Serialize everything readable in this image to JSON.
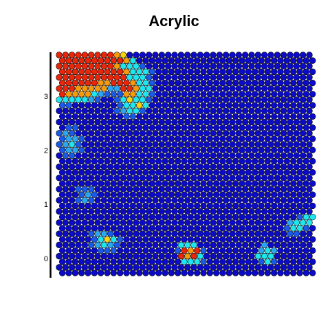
{
  "chart_data": {
    "type": "hexmap",
    "title": "Acrylic",
    "ylim": [
      -0.32,
      3.83
    ],
    "yticks": [
      0,
      1,
      2,
      3
    ],
    "palette": [
      "#0c0cc8",
      "#1a5ae6",
      "#2aa6f2",
      "#1ee6f0",
      "#f5d20a",
      "#f59a0a",
      "#e8260a"
    ],
    "values": [
      [
        6,
        6,
        6,
        6,
        6,
        6,
        6,
        6,
        6,
        5,
        4,
        0,
        0,
        0,
        0,
        0,
        0,
        0,
        0,
        0,
        0,
        0,
        0,
        0,
        0,
        0,
        0,
        0,
        0,
        0,
        0,
        0,
        0,
        0,
        0,
        0,
        0,
        0,
        0,
        0
      ],
      [
        6,
        6,
        6,
        6,
        6,
        6,
        6,
        6,
        6,
        6,
        5,
        3,
        0,
        0,
        0,
        0,
        0,
        0,
        0,
        0,
        0,
        0,
        0,
        0,
        0,
        0,
        0,
        0,
        0,
        0,
        0,
        0,
        0,
        0,
        0,
        0,
        0,
        0,
        0,
        0
      ],
      [
        6,
        6,
        6,
        6,
        6,
        6,
        6,
        6,
        6,
        5,
        3,
        3,
        3,
        1,
        0,
        0,
        0,
        0,
        0,
        0,
        0,
        0,
        0,
        0,
        0,
        0,
        0,
        0,
        0,
        0,
        0,
        0,
        0,
        0,
        0,
        0,
        0,
        0,
        0,
        0
      ],
      [
        6,
        6,
        6,
        6,
        6,
        6,
        6,
        6,
        6,
        6,
        5,
        3,
        3,
        3,
        1,
        0,
        0,
        0,
        0,
        0,
        0,
        0,
        0,
        0,
        0,
        0,
        0,
        0,
        0,
        0,
        0,
        0,
        0,
        0,
        0,
        0,
        0,
        0,
        0,
        0
      ],
      [
        6,
        6,
        6,
        6,
        6,
        6,
        6,
        6,
        6,
        6,
        6,
        3,
        3,
        3,
        1,
        0,
        0,
        0,
        0,
        0,
        0,
        0,
        0,
        0,
        0,
        0,
        0,
        0,
        0,
        0,
        0,
        0,
        0,
        0,
        0,
        0,
        0,
        0,
        0,
        0
      ],
      [
        6,
        6,
        6,
        6,
        6,
        6,
        5,
        5,
        6,
        6,
        6,
        5,
        3,
        3,
        1,
        0,
        0,
        0,
        0,
        0,
        0,
        0,
        0,
        0,
        0,
        0,
        0,
        0,
        0,
        0,
        0,
        0,
        0,
        0,
        0,
        0,
        0,
        0,
        0,
        0
      ],
      [
        6,
        6,
        6,
        5,
        5,
        5,
        5,
        5,
        2,
        2,
        6,
        6,
        5,
        3,
        3,
        0,
        0,
        0,
        0,
        0,
        0,
        0,
        0,
        0,
        0,
        0,
        0,
        0,
        0,
        0,
        0,
        0,
        0,
        0,
        0,
        0,
        0,
        0,
        0,
        0
      ],
      [
        6,
        5,
        5,
        5,
        5,
        3,
        2,
        1,
        1,
        1,
        5,
        5,
        3,
        3,
        1,
        0,
        0,
        0,
        0,
        0,
        0,
        0,
        0,
        0,
        0,
        0,
        0,
        0,
        0,
        0,
        0,
        0,
        0,
        0,
        0,
        0,
        0,
        0,
        0,
        0
      ],
      [
        3,
        3,
        3,
        3,
        3,
        2,
        1,
        0,
        0,
        1,
        3,
        4,
        3,
        3,
        1,
        0,
        0,
        0,
        0,
        0,
        0,
        0,
        0,
        0,
        0,
        0,
        0,
        0,
        0,
        0,
        0,
        0,
        0,
        0,
        0,
        0,
        0,
        0,
        0,
        0
      ],
      [
        1,
        1,
        0,
        0,
        0,
        0,
        0,
        0,
        0,
        1,
        3,
        3,
        4,
        3,
        0,
        0,
        0,
        0,
        0,
        0,
        0,
        0,
        0,
        0,
        0,
        0,
        0,
        0,
        0,
        0,
        0,
        0,
        0,
        0,
        0,
        0,
        0,
        0,
        0,
        0
      ],
      [
        0,
        0,
        0,
        0,
        0,
        0,
        0,
        0,
        0,
        1,
        2,
        3,
        3,
        1,
        0,
        0,
        0,
        0,
        0,
        0,
        0,
        0,
        0,
        0,
        0,
        0,
        0,
        0,
        0,
        0,
        0,
        0,
        0,
        0,
        0,
        0,
        0,
        0,
        0,
        0
      ],
      [
        0,
        0,
        0,
        0,
        0,
        0,
        0,
        0,
        0,
        0,
        1,
        1,
        0,
        0,
        0,
        0,
        0,
        0,
        0,
        0,
        0,
        0,
        0,
        0,
        0,
        0,
        0,
        0,
        0,
        0,
        0,
        0,
        0,
        0,
        0,
        0,
        0,
        0,
        0,
        0
      ],
      [
        0,
        0,
        0,
        0,
        0,
        0,
        0,
        0,
        0,
        0,
        0,
        0,
        0,
        0,
        0,
        0,
        0,
        0,
        0,
        0,
        0,
        0,
        0,
        0,
        0,
        0,
        0,
        0,
        0,
        0,
        0,
        0,
        0,
        0,
        0,
        0,
        0,
        0,
        0,
        0
      ],
      [
        0,
        1,
        1,
        0,
        0,
        0,
        0,
        0,
        0,
        0,
        0,
        0,
        0,
        0,
        0,
        0,
        0,
        0,
        0,
        0,
        0,
        0,
        0,
        0,
        0,
        0,
        0,
        0,
        0,
        0,
        0,
        0,
        0,
        0,
        0,
        0,
        0,
        0,
        0,
        0
      ],
      [
        1,
        2,
        1,
        0,
        0,
        0,
        0,
        0,
        0,
        0,
        0,
        0,
        0,
        0,
        0,
        0,
        0,
        0,
        0,
        0,
        0,
        0,
        0,
        0,
        0,
        0,
        0,
        0,
        0,
        0,
        0,
        0,
        0,
        0,
        0,
        0,
        0,
        0,
        0,
        0
      ],
      [
        1,
        2,
        2,
        1,
        0,
        0,
        0,
        0,
        0,
        0,
        0,
        0,
        0,
        0,
        0,
        0,
        0,
        0,
        0,
        0,
        0,
        0,
        0,
        0,
        0,
        0,
        0,
        0,
        0,
        0,
        0,
        0,
        0,
        0,
        0,
        0,
        0,
        0,
        0,
        0
      ],
      [
        1,
        2,
        3,
        1,
        0,
        0,
        0,
        0,
        0,
        0,
        0,
        0,
        0,
        0,
        0,
        0,
        0,
        0,
        0,
        0,
        0,
        0,
        0,
        0,
        0,
        0,
        0,
        0,
        0,
        0,
        0,
        0,
        0,
        0,
        0,
        0,
        0,
        0,
        0,
        0
      ],
      [
        1,
        2,
        2,
        1,
        0,
        0,
        0,
        0,
        0,
        0,
        0,
        0,
        0,
        0,
        0,
        0,
        0,
        0,
        0,
        0,
        0,
        0,
        0,
        0,
        0,
        0,
        0,
        0,
        0,
        0,
        0,
        0,
        0,
        0,
        0,
        0,
        0,
        0,
        0,
        0
      ],
      [
        0,
        1,
        1,
        0,
        0,
        0,
        0,
        0,
        0,
        0,
        0,
        0,
        0,
        0,
        0,
        0,
        0,
        0,
        0,
        0,
        0,
        0,
        0,
        0,
        0,
        0,
        0,
        0,
        0,
        0,
        0,
        0,
        0,
        0,
        0,
        0,
        0,
        0,
        0,
        0
      ],
      [
        0,
        0,
        0,
        0,
        0,
        0,
        0,
        0,
        0,
        0,
        0,
        0,
        0,
        0,
        0,
        0,
        0,
        0,
        0,
        0,
        0,
        0,
        0,
        0,
        0,
        0,
        0,
        0,
        0,
        0,
        0,
        0,
        0,
        0,
        0,
        0,
        0,
        0,
        0,
        0
      ],
      [
        0,
        0,
        0,
        0,
        0,
        0,
        0,
        0,
        0,
        0,
        0,
        0,
        0,
        0,
        0,
        0,
        0,
        0,
        0,
        0,
        0,
        0,
        0,
        0,
        0,
        0,
        0,
        0,
        0,
        0,
        0,
        0,
        0,
        0,
        0,
        0,
        0,
        0,
        0,
        0
      ],
      [
        0,
        0,
        0,
        0,
        0,
        0,
        0,
        0,
        0,
        0,
        0,
        0,
        0,
        0,
        0,
        0,
        0,
        0,
        0,
        0,
        0,
        0,
        0,
        0,
        0,
        0,
        0,
        0,
        0,
        0,
        0,
        0,
        0,
        0,
        0,
        0,
        0,
        0,
        0,
        0
      ],
      [
        0,
        0,
        0,
        0,
        0,
        0,
        0,
        0,
        0,
        0,
        0,
        0,
        0,
        0,
        0,
        0,
        0,
        0,
        0,
        0,
        0,
        0,
        0,
        0,
        0,
        0,
        0,
        0,
        0,
        0,
        0,
        0,
        0,
        0,
        0,
        0,
        0,
        0,
        0,
        0
      ],
      [
        0,
        0,
        0,
        0,
        0,
        0,
        0,
        0,
        0,
        0,
        0,
        0,
        0,
        0,
        0,
        0,
        0,
        0,
        0,
        0,
        0,
        0,
        0,
        0,
        0,
        0,
        0,
        0,
        0,
        0,
        0,
        0,
        0,
        0,
        0,
        0,
        0,
        0,
        0,
        0
      ],
      [
        0,
        0,
        0,
        1,
        1,
        1,
        0,
        0,
        0,
        0,
        0,
        0,
        0,
        0,
        0,
        0,
        0,
        0,
        0,
        0,
        0,
        0,
        0,
        0,
        0,
        0,
        0,
        0,
        0,
        0,
        0,
        0,
        0,
        0,
        0,
        0,
        0,
        0,
        0,
        0
      ],
      [
        0,
        0,
        0,
        1,
        2,
        1,
        0,
        0,
        0,
        0,
        0,
        0,
        0,
        0,
        0,
        0,
        0,
        0,
        0,
        0,
        0,
        0,
        0,
        0,
        0,
        0,
        0,
        0,
        0,
        0,
        0,
        0,
        0,
        0,
        0,
        0,
        0,
        0,
        0,
        0
      ],
      [
        0,
        0,
        0,
        1,
        2,
        1,
        0,
        0,
        0,
        0,
        0,
        0,
        0,
        0,
        0,
        0,
        0,
        0,
        0,
        0,
        0,
        0,
        0,
        0,
        0,
        0,
        0,
        0,
        0,
        0,
        0,
        0,
        0,
        0,
        0,
        0,
        0,
        0,
        0,
        0
      ],
      [
        0,
        0,
        0,
        0,
        0,
        0,
        0,
        0,
        0,
        0,
        0,
        0,
        0,
        0,
        0,
        0,
        0,
        0,
        0,
        0,
        0,
        0,
        0,
        0,
        0,
        0,
        0,
        0,
        0,
        0,
        0,
        0,
        0,
        0,
        0,
        0,
        0,
        0,
        0,
        0
      ],
      [
        0,
        0,
        0,
        0,
        0,
        0,
        0,
        0,
        0,
        0,
        0,
        0,
        0,
        0,
        0,
        0,
        0,
        0,
        0,
        0,
        0,
        0,
        0,
        0,
        0,
        0,
        0,
        0,
        0,
        0,
        0,
        0,
        0,
        0,
        0,
        0,
        0,
        0,
        0,
        0
      ],
      [
        0,
        0,
        0,
        0,
        0,
        0,
        0,
        0,
        0,
        0,
        0,
        0,
        0,
        0,
        0,
        0,
        0,
        0,
        0,
        0,
        0,
        0,
        0,
        0,
        0,
        0,
        0,
        0,
        0,
        0,
        0,
        0,
        0,
        0,
        0,
        0,
        0,
        1,
        3,
        3
      ],
      [
        0,
        0,
        0,
        0,
        0,
        0,
        0,
        0,
        0,
        0,
        0,
        0,
        0,
        0,
        0,
        0,
        0,
        0,
        0,
        0,
        0,
        0,
        0,
        0,
        0,
        0,
        0,
        0,
        0,
        0,
        0,
        0,
        0,
        0,
        0,
        0,
        2,
        3,
        3,
        3
      ],
      [
        0,
        0,
        0,
        0,
        0,
        0,
        0,
        0,
        0,
        0,
        0,
        0,
        0,
        0,
        0,
        0,
        0,
        0,
        0,
        0,
        0,
        0,
        0,
        0,
        0,
        0,
        0,
        0,
        0,
        0,
        0,
        0,
        0,
        0,
        0,
        1,
        3,
        3,
        1,
        0
      ],
      [
        0,
        0,
        0,
        0,
        0,
        1,
        2,
        2,
        1,
        0,
        0,
        0,
        0,
        0,
        0,
        0,
        0,
        0,
        0,
        0,
        0,
        0,
        0,
        0,
        0,
        0,
        0,
        0,
        0,
        0,
        0,
        0,
        0,
        0,
        0,
        0,
        1,
        1,
        0,
        0
      ],
      [
        0,
        0,
        0,
        0,
        0,
        1,
        3,
        4,
        3,
        1,
        0,
        0,
        0,
        0,
        0,
        0,
        0,
        0,
        0,
        0,
        0,
        0,
        0,
        0,
        0,
        0,
        0,
        0,
        0,
        0,
        0,
        0,
        0,
        0,
        0,
        0,
        0,
        0,
        0,
        0
      ],
      [
        0,
        0,
        0,
        0,
        0,
        1,
        2,
        3,
        2,
        1,
        0,
        0,
        0,
        0,
        0,
        0,
        0,
        0,
        0,
        3,
        3,
        3,
        0,
        0,
        0,
        0,
        0,
        0,
        0,
        0,
        0,
        0,
        2,
        0,
        0,
        0,
        0,
        0,
        0,
        0
      ],
      [
        0,
        0,
        0,
        0,
        0,
        0,
        1,
        1,
        1,
        0,
        0,
        0,
        0,
        0,
        0,
        0,
        0,
        0,
        1,
        6,
        5,
        6,
        1,
        0,
        0,
        0,
        0,
        0,
        0,
        0,
        0,
        2,
        3,
        2,
        0,
        0,
        0,
        0,
        0,
        0
      ],
      [
        0,
        0,
        0,
        0,
        0,
        0,
        0,
        0,
        0,
        0,
        0,
        0,
        0,
        0,
        0,
        0,
        0,
        0,
        0,
        6,
        5,
        6,
        3,
        0,
        0,
        0,
        0,
        0,
        0,
        0,
        0,
        3,
        3,
        3,
        0,
        0,
        0,
        0,
        0,
        0
      ],
      [
        0,
        0,
        0,
        0,
        0,
        0,
        0,
        0,
        0,
        0,
        0,
        0,
        0,
        0,
        0,
        0,
        0,
        0,
        0,
        3,
        3,
        3,
        1,
        0,
        0,
        0,
        0,
        0,
        0,
        0,
        0,
        1,
        3,
        1,
        0,
        0,
        0,
        0,
        0,
        0
      ],
      [
        0,
        0,
        0,
        0,
        0,
        0,
        0,
        0,
        0,
        0,
        0,
        0,
        0,
        0,
        0,
        0,
        0,
        0,
        0,
        0,
        0,
        0,
        0,
        0,
        0,
        0,
        0,
        0,
        0,
        0,
        0,
        0,
        0,
        0,
        0,
        0,
        0,
        0,
        0,
        0
      ],
      [
        0,
        0,
        0,
        0,
        0,
        0,
        0,
        0,
        0,
        0,
        0,
        0,
        0,
        0,
        0,
        0,
        0,
        0,
        0,
        0,
        0,
        0,
        0,
        0,
        0,
        0,
        0,
        0,
        0,
        0,
        0,
        0,
        0,
        0,
        0,
        0,
        0,
        0,
        0,
        0
      ]
    ]
  }
}
